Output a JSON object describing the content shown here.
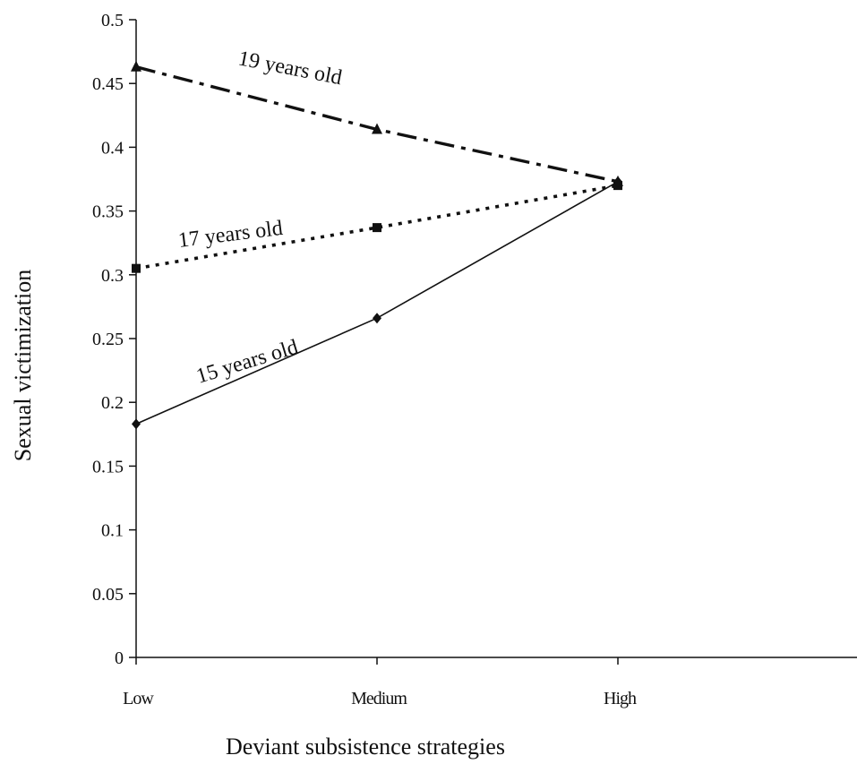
{
  "chart_data": {
    "type": "line",
    "title": "",
    "xlabel": "Deviant subsistence strategies",
    "ylabel": "Sexual victimization",
    "categories": [
      "Low",
      "Medium",
      "High"
    ],
    "ylim": [
      0,
      0.5
    ],
    "yticks": [
      "0",
      "0.05",
      "0.1",
      "0.15",
      "0.2",
      "0.25",
      "0.3",
      "0.35",
      "0.4",
      "0.45",
      "0.5"
    ],
    "grid": false,
    "legend": "none",
    "series": [
      {
        "name": "19 years old",
        "values": [
          0.463,
          0.414,
          0.373
        ],
        "line_style": "dash-dot",
        "marker": "triangle",
        "color": "#111111"
      },
      {
        "name": "17 years old",
        "values": [
          0.305,
          0.337,
          0.37
        ],
        "line_style": "dotted",
        "marker": "square",
        "color": "#111111"
      },
      {
        "name": "15 years old",
        "values": [
          0.183,
          0.266,
          0.373
        ],
        "line_style": "solid",
        "marker": "diamond",
        "color": "#111111"
      }
    ]
  }
}
